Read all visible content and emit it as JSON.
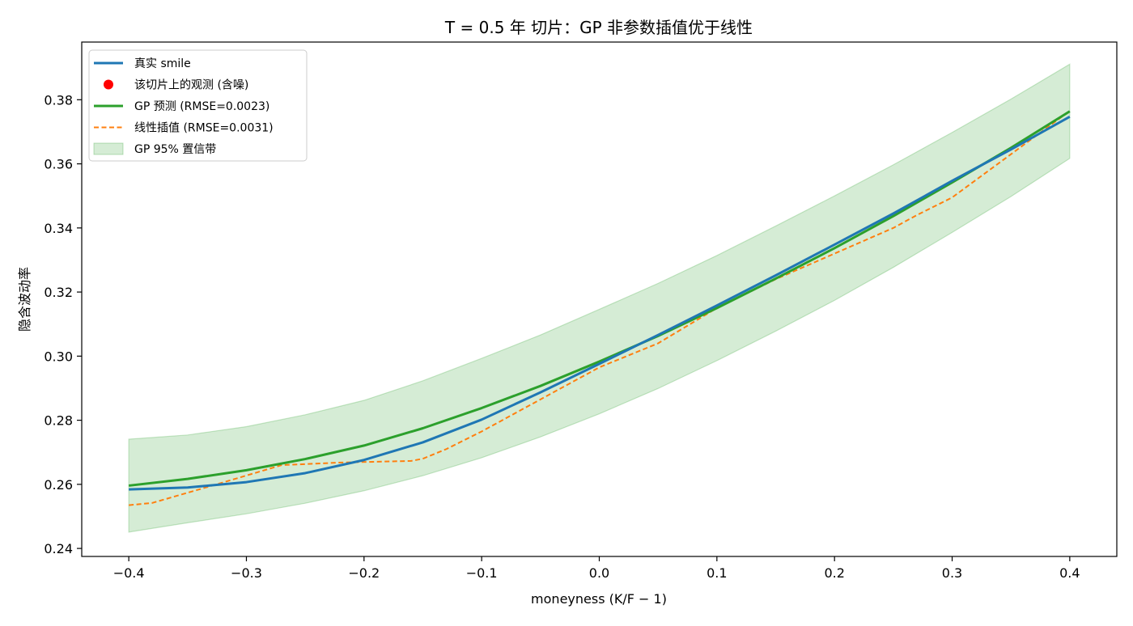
{
  "chart_data": {
    "type": "line",
    "title": "T = 0.5 年 切片：GP 非参数插值优于线性",
    "xlabel": "moneyness (K/F − 1)",
    "ylabel": "隐含波动率",
    "xlim": [
      -0.44,
      0.44
    ],
    "ylim": [
      0.2375,
      0.398
    ],
    "x_ticks": [
      -0.4,
      -0.3,
      -0.2,
      -0.1,
      0.0,
      0.1,
      0.2,
      0.3,
      0.4
    ],
    "x_tick_labels": [
      "−0.4",
      "−0.3",
      "−0.2",
      "−0.1",
      "0.0",
      "0.1",
      "0.2",
      "0.3",
      "0.4"
    ],
    "y_ticks": [
      0.24,
      0.26,
      0.28,
      0.3,
      0.32,
      0.34,
      0.36,
      0.38
    ],
    "y_tick_labels": [
      "0.24",
      "0.26",
      "0.28",
      "0.30",
      "0.32",
      "0.34",
      "0.36",
      "0.38"
    ],
    "grid": false,
    "legend_placement": "upper-left",
    "legend": [
      {
        "label": "真实 smile",
        "kind": "line",
        "color": "#1f77b4"
      },
      {
        "label": "该切片上的观测 (含噪)",
        "kind": "marker",
        "color": "#ff0000"
      },
      {
        "label": "GP 预测 (RMSE=0.0023)",
        "kind": "line",
        "color": "#2ca02c"
      },
      {
        "label": "线性插值 (RMSE=0.0031)",
        "kind": "dashed",
        "color": "#ff7f0e"
      },
      {
        "label": "GP 95% 置信带",
        "kind": "band",
        "color": "#2ca02c"
      }
    ],
    "series": [
      {
        "name": "真实 smile",
        "color": "#1f77b4",
        "style": "solid",
        "x": [
          -0.4,
          -0.35,
          -0.3,
          -0.25,
          -0.2,
          -0.15,
          -0.1,
          -0.05,
          0.0,
          0.05,
          0.1,
          0.15,
          0.2,
          0.25,
          0.3,
          0.35,
          0.4
        ],
        "y": [
          0.2584,
          0.259,
          0.2607,
          0.2635,
          0.2676,
          0.2731,
          0.2802,
          0.2887,
          0.2976,
          0.3066,
          0.3158,
          0.3252,
          0.3348,
          0.3445,
          0.3547,
          0.3645,
          0.3747
        ]
      },
      {
        "name": "GP 预测 (RMSE=0.0023)",
        "color": "#2ca02c",
        "style": "solid",
        "x": [
          -0.4,
          -0.35,
          -0.3,
          -0.25,
          -0.2,
          -0.15,
          -0.1,
          -0.05,
          0.0,
          0.05,
          0.1,
          0.15,
          0.2,
          0.25,
          0.3,
          0.35,
          0.4
        ],
        "y": [
          0.2596,
          0.2617,
          0.2644,
          0.2679,
          0.2721,
          0.2775,
          0.2838,
          0.2907,
          0.2983,
          0.3063,
          0.315,
          0.3242,
          0.3337,
          0.3437,
          0.3542,
          0.365,
          0.3764
        ]
      },
      {
        "name": "线性插值 (RMSE=0.0031)",
        "color": "#ff7f0e",
        "style": "dashed",
        "x": [
          -0.4,
          -0.38,
          -0.33,
          -0.27,
          -0.22,
          -0.16,
          -0.15,
          -0.13,
          -0.1,
          -0.05,
          0.0,
          0.05,
          0.1,
          0.15,
          0.2,
          0.25,
          0.27,
          0.3,
          0.35,
          0.4
        ],
        "y": [
          0.2535,
          0.2542,
          0.2595,
          0.266,
          0.2668,
          0.2673,
          0.268,
          0.271,
          0.2765,
          0.2865,
          0.2965,
          0.304,
          0.315,
          0.324,
          0.332,
          0.34,
          0.344,
          0.3495,
          0.363,
          0.3765
        ]
      }
    ],
    "confidence_band": {
      "name": "GP 95% 置信带",
      "color": "#2ca02c",
      "x": [
        -0.4,
        -0.35,
        -0.3,
        -0.25,
        -0.2,
        -0.15,
        -0.1,
        -0.05,
        0.0,
        0.05,
        0.1,
        0.15,
        0.2,
        0.25,
        0.3,
        0.35,
        0.4
      ],
      "lower": [
        0.2451,
        0.248,
        0.2508,
        0.2541,
        0.258,
        0.2627,
        0.2683,
        0.2748,
        0.282,
        0.2899,
        0.2986,
        0.3078,
        0.3174,
        0.3277,
        0.3386,
        0.3498,
        0.3617
      ],
      "upper": [
        0.2741,
        0.2754,
        0.278,
        0.2817,
        0.2862,
        0.2923,
        0.2993,
        0.3066,
        0.3146,
        0.3227,
        0.3314,
        0.3406,
        0.35,
        0.3597,
        0.3698,
        0.3802,
        0.3911
      ]
    },
    "observations": {
      "name": "该切片上的观测 (含噪)",
      "color": "#ff0000",
      "x": [],
      "y": []
    }
  }
}
